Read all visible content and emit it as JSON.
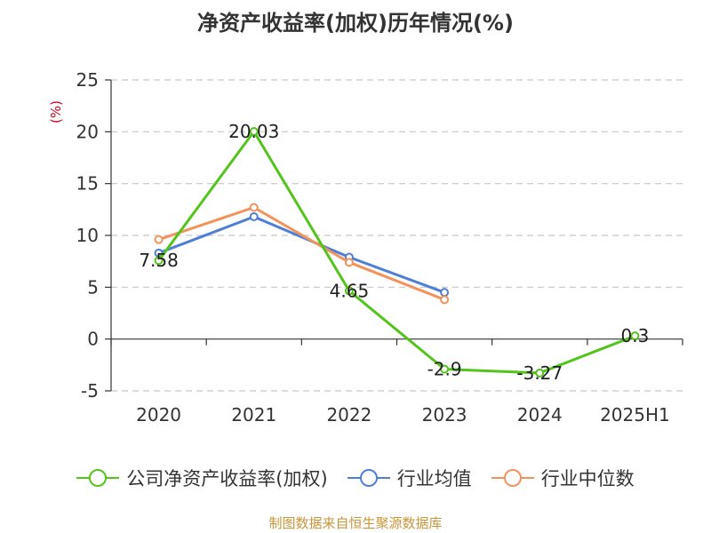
{
  "chart_data": {
    "type": "line",
    "title": "净资产收益率(加权)历年情况(%)",
    "ylabel": "(%)",
    "xlabel": "",
    "categories": [
      "2020",
      "2021",
      "2022",
      "2023",
      "2024",
      "2025H1"
    ],
    "ylim": [
      -5,
      25
    ],
    "yticks": [
      -5,
      0,
      5,
      10,
      15,
      20,
      25
    ],
    "grid": true,
    "legend_position": "bottom",
    "series": [
      {
        "name": "公司净资产收益率(加权)",
        "color": "#52c41a",
        "values": [
          7.58,
          20.03,
          4.65,
          -2.9,
          -3.27,
          0.3
        ],
        "labels": [
          "7.58",
          "20.03",
          "4.65",
          "-2.9",
          "-3.27",
          "0.3"
        ]
      },
      {
        "name": "行业均值",
        "color": "#4e7fd6",
        "values": [
          8.3,
          11.8,
          7.9,
          4.5,
          null,
          null
        ]
      },
      {
        "name": "行业中位数",
        "color": "#f4925c",
        "values": [
          9.6,
          12.7,
          7.4,
          3.8,
          null,
          null
        ]
      }
    ]
  },
  "source": "制图数据来自恒生聚源数据库"
}
